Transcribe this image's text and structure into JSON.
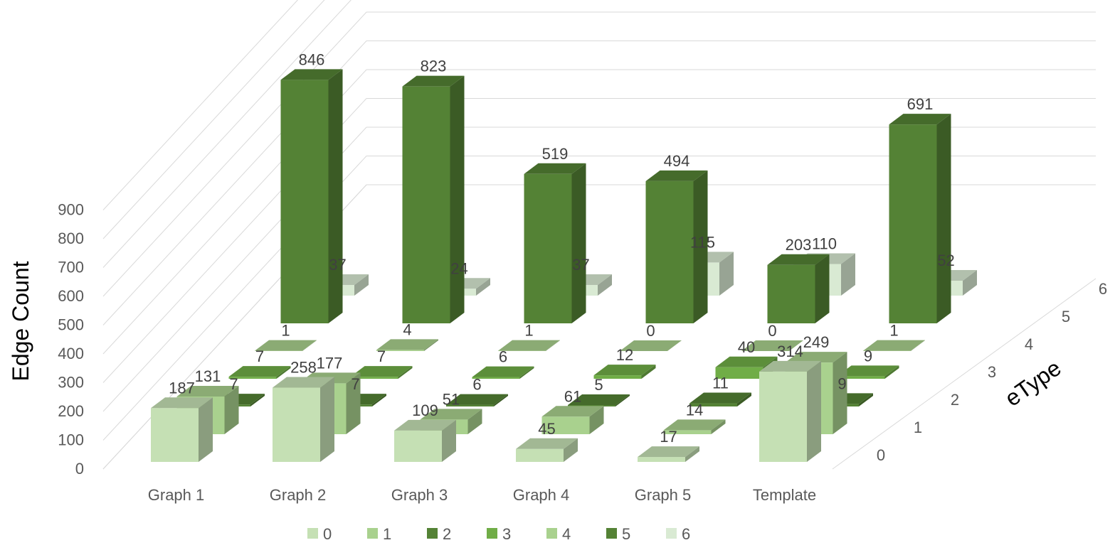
{
  "chart_data": {
    "type": "bar",
    "subtype": "3d-column",
    "title": "",
    "ylabel": "Edge Count",
    "zlabel": "eType",
    "ylim": [
      0,
      900
    ],
    "yticks": [
      0,
      100,
      200,
      300,
      400,
      500,
      600,
      700,
      800,
      900
    ],
    "categories": [
      "Graph 1",
      "Graph 2",
      "Graph 3",
      "Graph 4",
      "Graph 5",
      "Template"
    ],
    "depth_ticks": [
      "0",
      "1",
      "2",
      "3",
      "4",
      "5",
      "6"
    ],
    "gridlines": true,
    "legend_position": "bottom",
    "series": [
      {
        "name": "0",
        "color": "#c5e0b4",
        "values": [
          187,
          258,
          109,
          45,
          17,
          314
        ]
      },
      {
        "name": "1",
        "color": "#a9d18e",
        "values": [
          131,
          177,
          51,
          61,
          14,
          249
        ]
      },
      {
        "name": "2",
        "color": "#548235",
        "values": [
          7,
          7,
          6,
          5,
          11,
          9
        ]
      },
      {
        "name": "3",
        "color": "#70ad47",
        "values": [
          7,
          7,
          6,
          12,
          40,
          9
        ]
      },
      {
        "name": "4",
        "color": "#a9d18e",
        "values": [
          1,
          4,
          1,
          0,
          0,
          1
        ]
      },
      {
        "name": "5",
        "color": "#548235",
        "values": [
          846,
          823,
          519,
          494,
          203,
          691
        ]
      },
      {
        "name": "6",
        "color": "#d9ead3",
        "values": [
          37,
          24,
          37,
          115,
          110,
          52
        ]
      }
    ]
  }
}
